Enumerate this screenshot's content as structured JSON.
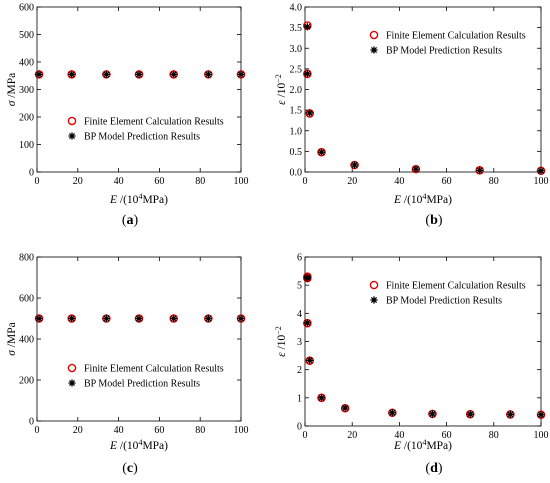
{
  "chart_data": [
    {
      "type": "scatter",
      "panel_label": "(a)",
      "xlim": [
        0,
        100
      ],
      "xticks": [
        0,
        20,
        40,
        60,
        80,
        100
      ],
      "ylim": [
        0,
        600
      ],
      "yticks": [
        0,
        100,
        200,
        300,
        400,
        500,
        600
      ],
      "x_tick_labels": [
        "0",
        "20",
        "40",
        "60",
        "80",
        "100"
      ],
      "y_tick_labels": [
        "0",
        "100",
        "200",
        "300",
        "400",
        "500",
        "600"
      ],
      "xlabel": {
        "symbol": "E",
        "unit_pre": " /(10",
        "unit_sup": "4",
        "unit_post": "MPa)"
      },
      "ylabel": {
        "symbol": "σ",
        "unit": " /MPa"
      },
      "legend": {
        "position": "center-left",
        "entries": [
          "Finite Element Calculation Results",
          "BP Model Prediction Results"
        ]
      },
      "series": [
        {
          "name": "Finite Element Calculation Results",
          "marker": "circle",
          "color": "#e00000",
          "x": [
            1,
            17,
            34,
            50,
            67,
            84,
            100
          ],
          "y": [
            355,
            355,
            355,
            355,
            355,
            355,
            355
          ]
        },
        {
          "name": "BP Model Prediction Results",
          "marker": "asterisk",
          "color": "#000000",
          "x": [
            1,
            17,
            34,
            50,
            67,
            84,
            100
          ],
          "y": [
            355,
            355,
            355,
            355,
            355,
            355,
            355
          ]
        }
      ]
    },
    {
      "type": "scatter",
      "panel_label": "(b)",
      "xlim": [
        0,
        100
      ],
      "xticks": [
        0,
        20,
        40,
        60,
        80,
        100
      ],
      "ylim": [
        0,
        4.0
      ],
      "yticks": [
        0,
        0.5,
        1.0,
        1.5,
        2.0,
        2.5,
        3.0,
        3.5,
        4.0
      ],
      "x_tick_labels": [
        "0",
        "20",
        "40",
        "60",
        "80",
        "100"
      ],
      "y_tick_labels": [
        "0.0",
        "0.5",
        "1.0",
        "1.5",
        "2.0",
        "2.5",
        "3.0",
        "3.5",
        "4.0"
      ],
      "xlabel": {
        "symbol": "E",
        "unit_pre": " /(10",
        "unit_sup": "4",
        "unit_post": "MPa)"
      },
      "ylabel": {
        "symbol": "ε",
        "unit": " /10",
        "unit_sup": "−2"
      },
      "legend": {
        "position": "top-right",
        "entries": [
          "Finite Element Calculation Results",
          "BP Model Prediction Results"
        ]
      },
      "series": [
        {
          "name": "Finite Element Calculation Results",
          "marker": "circle",
          "color": "#e00000",
          "x": [
            1,
            1,
            2,
            7,
            21,
            47,
            74,
            100
          ],
          "y": [
            3.55,
            2.38,
            1.42,
            0.48,
            0.17,
            0.07,
            0.04,
            0.03
          ]
        },
        {
          "name": "BP Model Prediction Results",
          "marker": "asterisk",
          "color": "#000000",
          "x": [
            1,
            1,
            2,
            7,
            21,
            47,
            74,
            100
          ],
          "y": [
            3.52,
            2.38,
            1.43,
            0.48,
            0.17,
            0.07,
            0.04,
            0.03
          ]
        }
      ]
    },
    {
      "type": "scatter",
      "panel_label": "(c)",
      "xlim": [
        0,
        100
      ],
      "xticks": [
        0,
        20,
        40,
        60,
        80,
        100
      ],
      "ylim": [
        0,
        800
      ],
      "yticks": [
        0,
        200,
        400,
        600,
        800
      ],
      "x_tick_labels": [
        "0",
        "20",
        "40",
        "60",
        "80",
        "100"
      ],
      "y_tick_labels": [
        "0",
        "200",
        "400",
        "600",
        "800"
      ],
      "xlabel": {
        "symbol": "E",
        "unit_pre": " /(10",
        "unit_sup": "4",
        "unit_post": "MPa)"
      },
      "ylabel": {
        "symbol": "σ",
        "unit": " /MPa"
      },
      "legend": {
        "position": "lower-left",
        "entries": [
          "Finite Element Calculation Results",
          "BP Model Prediction Results"
        ]
      },
      "series": [
        {
          "name": "Finite Element Calculation Results",
          "marker": "circle",
          "color": "#e00000",
          "x": [
            1,
            17,
            34,
            50,
            67,
            84,
            100
          ],
          "y": [
            500,
            500,
            500,
            500,
            500,
            500,
            500
          ]
        },
        {
          "name": "BP Model Prediction Results",
          "marker": "asterisk",
          "color": "#000000",
          "x": [
            1,
            17,
            34,
            50,
            67,
            84,
            100
          ],
          "y": [
            500,
            500,
            500,
            500,
            500,
            500,
            500
          ]
        }
      ]
    },
    {
      "type": "scatter",
      "panel_label": "(d)",
      "xlim": [
        0,
        100
      ],
      "xticks": [
        0,
        20,
        40,
        60,
        80,
        100
      ],
      "ylim": [
        0,
        6
      ],
      "yticks": [
        0,
        1,
        2,
        3,
        4,
        5,
        6
      ],
      "x_tick_labels": [
        "0",
        "20",
        "40",
        "60",
        "80",
        "100"
      ],
      "y_tick_labels": [
        "0",
        "1",
        "2",
        "3",
        "4",
        "5",
        "6"
      ],
      "xlabel": {
        "symbol": "E",
        "unit_pre": " /(10",
        "unit_sup": "4",
        "unit_post": "MPa)"
      },
      "ylabel": {
        "symbol": "ε",
        "unit": " /10",
        "unit_sup": "−2"
      },
      "legend": {
        "position": "top-right",
        "entries": [
          "Finite Element Calculation Results",
          "BP Model Prediction Results"
        ]
      },
      "series": [
        {
          "name": "Finite Element Calculation Results",
          "marker": "circle",
          "color": "#e00000",
          "x": [
            1,
            1,
            1,
            2,
            7,
            17,
            37,
            54,
            70,
            87,
            100
          ],
          "y": [
            5.3,
            5.25,
            3.65,
            2.32,
            1.0,
            0.63,
            0.47,
            0.43,
            0.42,
            0.41,
            0.4
          ]
        },
        {
          "name": "BP Model Prediction Results",
          "marker": "asterisk",
          "color": "#000000",
          "x": [
            1,
            1,
            1,
            2,
            7,
            17,
            37,
            54,
            70,
            87,
            100
          ],
          "y": [
            5.28,
            5.25,
            3.66,
            2.33,
            1.0,
            0.64,
            0.47,
            0.43,
            0.42,
            0.41,
            0.4
          ]
        }
      ]
    }
  ]
}
